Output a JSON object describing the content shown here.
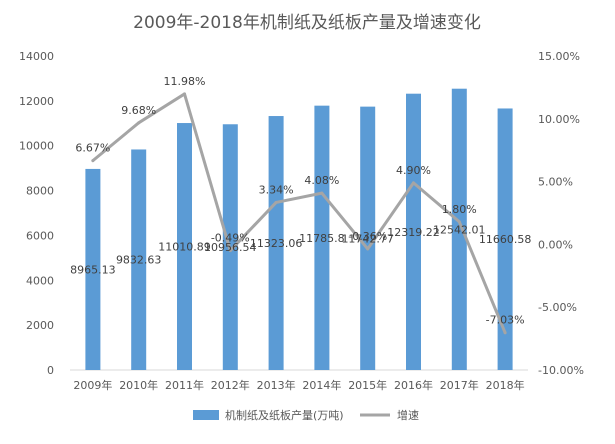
{
  "chart_data": {
    "type": "bar",
    "title": "2009年-2018年机制纸及纸板产量及增速变化",
    "categories": [
      "2009年",
      "2010年",
      "2011年",
      "2012年",
      "2013年",
      "2014年",
      "2015年",
      "2016年",
      "2017年",
      "2018年"
    ],
    "series": [
      {
        "name": "机制纸及纸板产量(万吨)",
        "type": "bar",
        "axis": "left",
        "color": "#5B9BD5",
        "values": [
          8965.13,
          9832.63,
          11010.89,
          10956.54,
          11323.06,
          11785.8,
          11742.77,
          12319.22,
          12542.01,
          11660.58
        ],
        "labels": [
          "8965.13",
          "9832.63",
          "11010.89",
          "10956.54",
          "11323.06",
          "11785.8",
          "11742.77",
          "12319.22",
          "12542.01",
          "11660.58"
        ]
      },
      {
        "name": "增速",
        "type": "line",
        "axis": "right",
        "color": "#A5A5A5",
        "values": [
          6.67,
          9.68,
          11.98,
          -0.49,
          3.34,
          4.08,
          -0.36,
          4.9,
          1.8,
          -7.03
        ],
        "labels": [
          "6.67%",
          "9.68%",
          "11.98%",
          "-0.49%",
          "3.34%",
          "4.08%",
          "-0.36%",
          "4.90%",
          "1.80%",
          "-7.03%"
        ]
      }
    ],
    "y_left": {
      "min": 0,
      "max": 14000,
      "ticks": [
        0,
        2000,
        4000,
        6000,
        8000,
        10000,
        12000,
        14000
      ],
      "tick_labels": [
        "0",
        "2000",
        "4000",
        "6000",
        "8000",
        "10000",
        "12000",
        "14000"
      ]
    },
    "y_right": {
      "min": -10,
      "max": 15,
      "ticks": [
        -10,
        -5,
        0,
        5,
        10,
        15
      ],
      "tick_labels": [
        "-10.00%",
        "-5.00%",
        "0.00%",
        "5.00%",
        "10.00%",
        "15.00%"
      ]
    },
    "grid": false,
    "legend_position": "bottom"
  }
}
